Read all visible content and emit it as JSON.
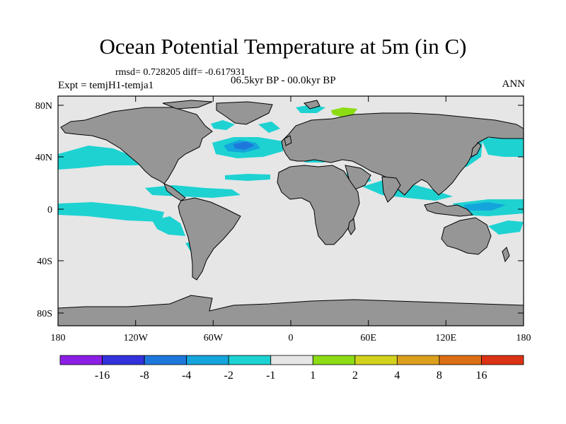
{
  "title": "Ocean Potential Temperature at 5m (in C)",
  "stats": "rmsd= 0.728205 diff= -0.617931",
  "experiment": "Expt = temjH1-temja1",
  "period": "06.5kyr BP - 00.0kyr BP",
  "season": "ANN",
  "lat_labels": [
    "80N",
    "40N",
    "0",
    "40S",
    "80S"
  ],
  "lon_labels": [
    "180",
    "120W",
    "60W",
    "0",
    "60E",
    "120E",
    "180"
  ],
  "colorbar": {
    "colors": [
      "#8c1ee6",
      "#3232dc",
      "#1e78dc",
      "#14a5dc",
      "#1ed2d2",
      "#e6e6e6",
      "#8cdc14",
      "#d2d21e",
      "#dca01e",
      "#dc6e14",
      "#dc3214"
    ],
    "labels": [
      "-16",
      "-8",
      "-4",
      "-2",
      "-1",
      "1",
      "2",
      "4",
      "8",
      "16"
    ]
  },
  "map_colors": {
    "ocean": "#e6e6e6",
    "land": "#969696",
    "cool_1": "#1ed2d2",
    "cool_2": "#14a5dc",
    "cool_3": "#1e78dc",
    "warm_1": "#8cdc14"
  }
}
